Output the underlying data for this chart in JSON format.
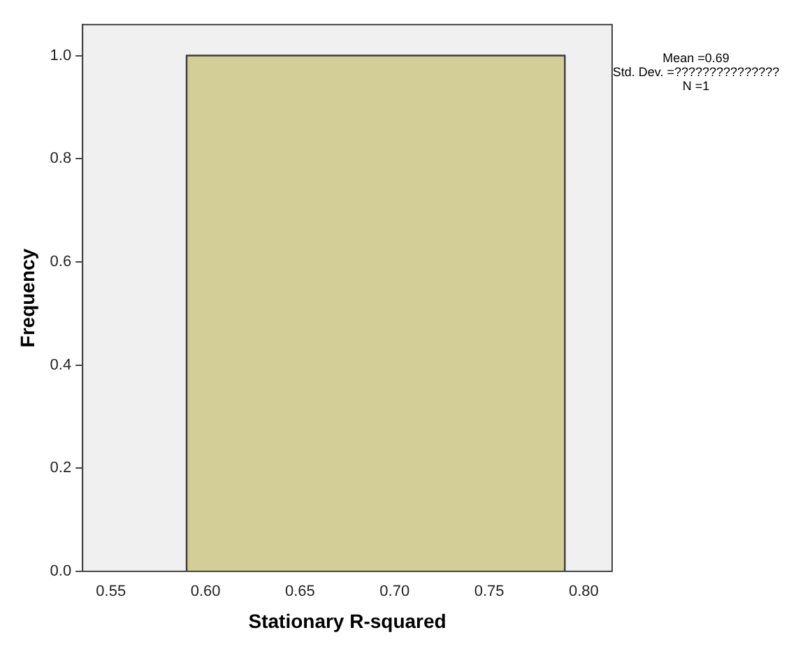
{
  "chart_data": {
    "type": "histogram",
    "xlabel": "Stationary R-squared",
    "ylabel": "Frequency",
    "bins": [
      0.59,
      0.79
    ],
    "values": [
      1
    ],
    "color": "#d3ce97",
    "xlim": [
      0.535,
      0.815
    ],
    "xticks": [
      0.55,
      {
        "value": 0.6,
        "label": "0.60"
      },
      0.65,
      {
        "value": 0.7,
        "label": "0.70"
      },
      0.75,
      {
        "value": 0.8,
        "label": "0.80"
      }
    ],
    "ylim": [
      0,
      1.06
    ],
    "yticks": [
      {
        "value": 0,
        "label": "0.0"
      },
      0.2,
      0.4,
      0.6,
      0.8,
      {
        "value": 1,
        "label": "1.0"
      }
    ],
    "grid": false,
    "legend": false,
    "annotations": [
      "Mean =0.69",
      "Std. Dev. =???????????????",
      "N =1"
    ]
  }
}
